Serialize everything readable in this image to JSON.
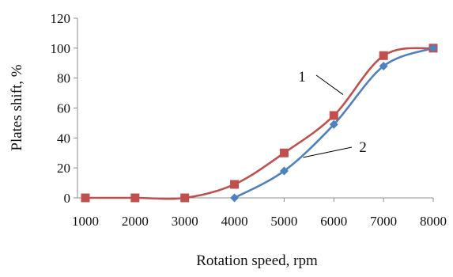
{
  "chart_data": {
    "type": "line",
    "title": "",
    "xlabel": "Rotation speed, rpm",
    "ylabel": "Plates shift, %",
    "xlim": [
      1000,
      8000
    ],
    "ylim": [
      0,
      120
    ],
    "x_ticks": [
      1000,
      2000,
      3000,
      4000,
      5000,
      6000,
      7000,
      8000
    ],
    "y_ticks": [
      0,
      20,
      40,
      60,
      80,
      100,
      120
    ],
    "grid": false,
    "legend": "none",
    "series": [
      {
        "id": "1",
        "label": "1",
        "color": "#c0504d",
        "marker": "square",
        "smooth": true,
        "x": [
          1000,
          2000,
          3000,
          4000,
          5000,
          6000,
          7000,
          8000
        ],
        "values": [
          0,
          0,
          0,
          9,
          30,
          55,
          95,
          100
        ]
      },
      {
        "id": "2",
        "label": "2",
        "color": "#4f81bd",
        "marker": "diamond",
        "smooth": true,
        "x": [
          4000,
          5000,
          6000,
          7000,
          8000
        ],
        "values": [
          0,
          18,
          49,
          88,
          100
        ]
      }
    ],
    "annotations": [
      {
        "text": "1",
        "series": "1"
      },
      {
        "text": "2",
        "series": "2"
      }
    ]
  }
}
